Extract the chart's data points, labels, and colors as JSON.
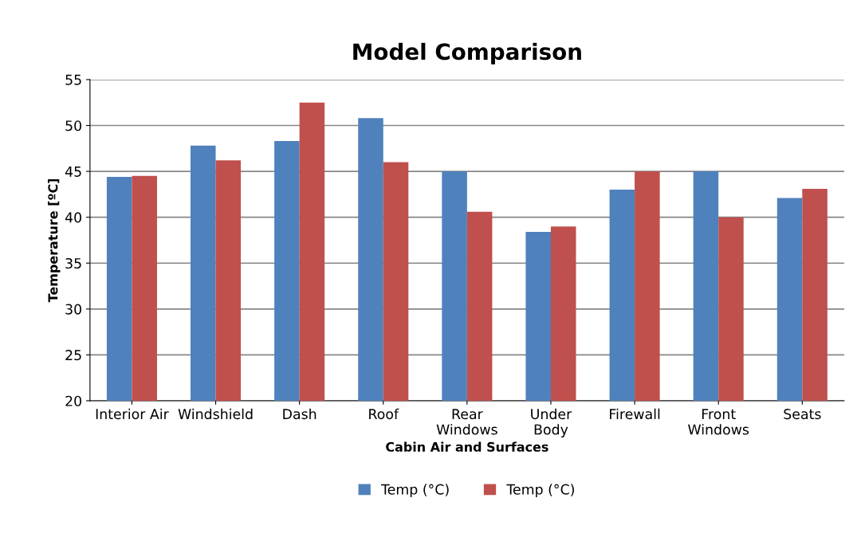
{
  "chart_data": {
    "type": "bar",
    "title": "Model Comparison",
    "xlabel": "Cabin Air and Surfaces",
    "ylabel": "Temperature [ºC]",
    "categories": [
      "Interior Air",
      "Windshield",
      "Dash",
      "Roof",
      "Rear\nWindows",
      "Under\nBody",
      "Firewall",
      "Front\nWindows",
      "Seats"
    ],
    "series": [
      {
        "name": "Temp (°C)",
        "color": "#4f81bd",
        "values": [
          44.4,
          47.8,
          48.3,
          50.8,
          45.0,
          38.4,
          43.0,
          45.0,
          42.1
        ]
      },
      {
        "name": "Temp (°C)",
        "color": "#c0504d",
        "values": [
          44.5,
          46.2,
          52.5,
          46.0,
          40.6,
          39.0,
          45.0,
          40.0,
          43.1
        ]
      }
    ],
    "ylim": [
      20,
      55
    ],
    "yticks": [
      20,
      25,
      30,
      35,
      40,
      45,
      50,
      55
    ],
    "grid": "y",
    "legend": "bottom"
  }
}
